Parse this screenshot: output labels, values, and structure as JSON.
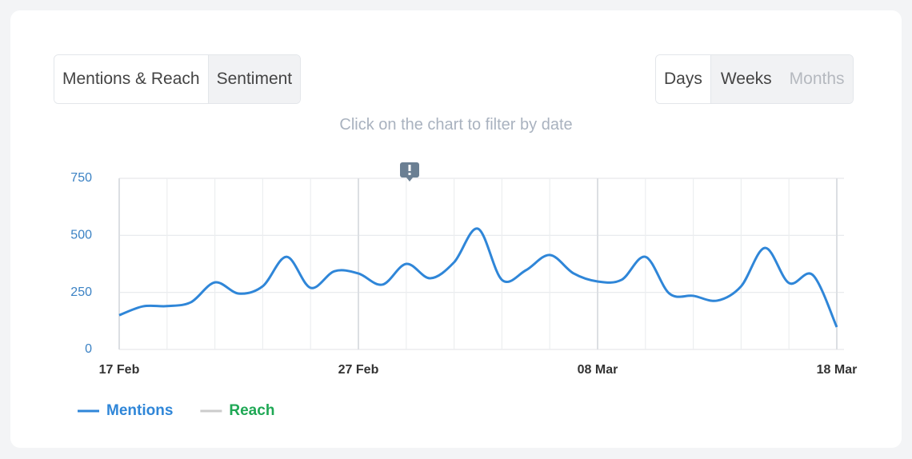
{
  "tabs": [
    "Mentions & Reach",
    "Sentiment"
  ],
  "periods": [
    "Days",
    "Weeks",
    "Months"
  ],
  "hint": "Click on the chart to filter by date",
  "chart_data": {
    "type": "line",
    "categories": [
      "17 Feb",
      null,
      null,
      null,
      null,
      null,
      null,
      null,
      null,
      null,
      "27 Feb",
      null,
      null,
      null,
      null,
      null,
      null,
      null,
      null,
      null,
      "08 Mar",
      null,
      null,
      null,
      null,
      null,
      null,
      null,
      null,
      null,
      "18 Mar"
    ],
    "series": [
      {
        "name": "Mentions",
        "color": "#2f86d8",
        "label_color": "#2f86d8",
        "values": [
          150,
          189,
          190,
          207,
          294,
          245,
          277,
          406,
          270,
          343,
          333,
          284,
          375,
          312,
          382,
          529,
          305,
          347,
          414,
          333,
          298,
          305,
          406,
          245,
          235,
          214,
          277,
          445,
          291,
          326,
          98
        ]
      },
      {
        "name": "Reach",
        "color": "#cccccc",
        "label_color": "#1fa855",
        "values": [
          null,
          null,
          null,
          null,
          null,
          null,
          null,
          null,
          null,
          null,
          null,
          null,
          null,
          null,
          null,
          null,
          null,
          null,
          null,
          null,
          null,
          null,
          null,
          null,
          null,
          null,
          null,
          null,
          null,
          null,
          null
        ]
      }
    ],
    "ylim": [
      0,
      750
    ],
    "yticks": [
      0,
      250,
      500,
      750
    ],
    "grid": true
  }
}
